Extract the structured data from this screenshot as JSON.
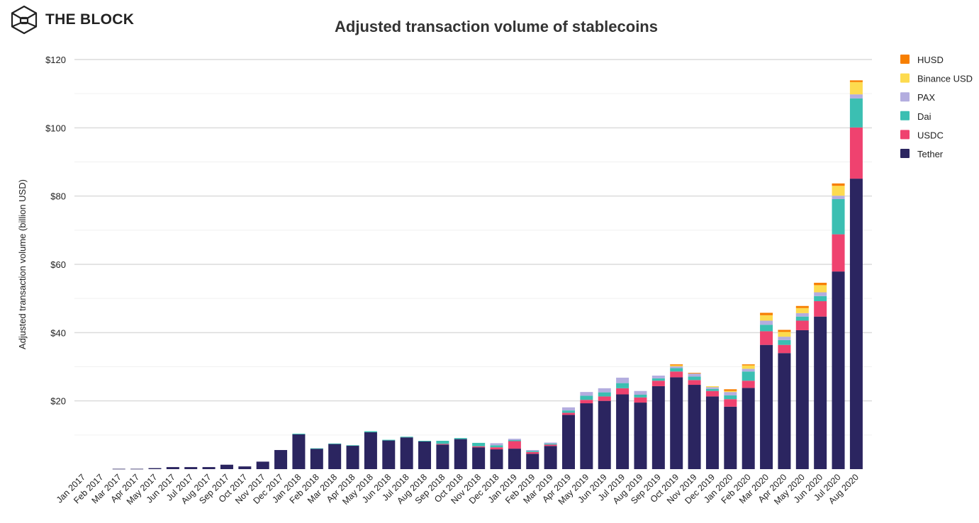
{
  "brand": {
    "name": "THE BLOCK",
    "icon": "cube-hexagon-icon"
  },
  "chart_data": {
    "type": "bar",
    "stacked": true,
    "title": "Adjusted transaction volume of stablecoins",
    "xlabel": "",
    "ylabel": "Adjusted transaction volume (billion USD)",
    "ylim": [
      0,
      120
    ],
    "yticks": [
      20,
      40,
      60,
      80,
      100,
      120
    ],
    "ytick_labels": [
      "$20",
      "$40",
      "$60",
      "$80",
      "$100",
      "$120"
    ],
    "grid": true,
    "legend_position": "top-right",
    "categories": [
      "Jan 2017",
      "Feb 2017",
      "Mar 2017",
      "Apr 2017",
      "May 2017",
      "Jun 2017",
      "Jul 2017",
      "Aug 2017",
      "Sep 2017",
      "Oct 2017",
      "Nov 2017",
      "Dec 2017",
      "Jan 2018",
      "Feb 2018",
      "Mar 2018",
      "Apr 2018",
      "May 2018",
      "Jun 2018",
      "Jul 2018",
      "Aug 2018",
      "Sep 2018",
      "Oct 2018",
      "Nov 2018",
      "Dec 2018",
      "Jan 2019",
      "Feb 2019",
      "Mar 2019",
      "Apr 2019",
      "May 2019",
      "Jun 2019",
      "Jul 2019",
      "Aug 2019",
      "Sep 2019",
      "Oct 2019",
      "Nov 2019",
      "Dec 2019",
      "Jan 2020",
      "Feb 2020",
      "Mar 2020",
      "Apr 2020",
      "May 2020",
      "Jun 2020",
      "Jul 2020",
      "Aug 2020"
    ],
    "series": [
      {
        "name": "Tether",
        "color": "#2b2560",
        "values": [
          0,
          0,
          0.1,
          0.1,
          0.3,
          0.6,
          0.6,
          0.6,
          1.3,
          0.8,
          2.2,
          5.6,
          10.2,
          6.0,
          7.4,
          6.9,
          10.8,
          8.4,
          9.3,
          8.1,
          7.2,
          8.8,
          6.4,
          5.8,
          6.0,
          4.5,
          6.8,
          15.9,
          19.3,
          20.0,
          21.9,
          19.5,
          24.3,
          26.9,
          24.7,
          21.3,
          18.3,
          23.8,
          36.4,
          34.0,
          40.7,
          44.7,
          57.9,
          85.1
        ]
      },
      {
        "name": "USDC",
        "color": "#ef426f",
        "values": [
          0,
          0,
          0,
          0,
          0,
          0,
          0,
          0,
          0,
          0,
          0,
          0,
          0,
          0,
          0,
          0,
          0,
          0,
          0,
          0,
          0.2,
          0,
          0.3,
          0.6,
          2.2,
          0.5,
          0.4,
          0.6,
          1.0,
          1.3,
          1.8,
          1.5,
          1.6,
          1.7,
          1.4,
          1.6,
          2.2,
          2.1,
          4.0,
          2.4,
          2.8,
          4.5,
          10.9,
          15.0
        ]
      },
      {
        "name": "Dai",
        "color": "#3bbfb2",
        "values": [
          0,
          0,
          0,
          0,
          0,
          0,
          0,
          0,
          0,
          0,
          0,
          0,
          0.2,
          0.1,
          0.1,
          0.1,
          0.3,
          0.2,
          0.2,
          0.2,
          0.9,
          0.3,
          1.0,
          0.6,
          0.3,
          0.3,
          0.3,
          0.7,
          1.2,
          1.2,
          1.5,
          0.8,
          0.7,
          1.0,
          1.0,
          0.6,
          1.1,
          2.7,
          1.9,
          1.4,
          1.2,
          1.5,
          10.3,
          8.5
        ]
      },
      {
        "name": "PAX",
        "color": "#b3addf",
        "values": [
          0,
          0,
          0,
          0,
          0,
          0,
          0,
          0,
          0,
          0,
          0,
          0,
          0,
          0,
          0,
          0,
          0,
          0,
          0,
          0,
          0,
          0,
          0,
          0.6,
          0.4,
          0.3,
          0.3,
          0.9,
          1.1,
          1.2,
          1.6,
          1.1,
          0.8,
          0.5,
          0.9,
          0.5,
          1.0,
          0.8,
          1.2,
          1.0,
          1.0,
          1.1,
          1.0,
          1.2
        ]
      },
      {
        "name": "Binance USD",
        "color": "#fddb4f",
        "values": [
          0,
          0,
          0,
          0,
          0,
          0,
          0,
          0,
          0,
          0,
          0,
          0,
          0,
          0,
          0,
          0,
          0,
          0,
          0,
          0,
          0,
          0,
          0,
          0,
          0,
          0,
          0,
          0,
          0,
          0,
          0,
          0,
          0,
          0.3,
          0,
          0.3,
          0.3,
          1.0,
          1.6,
          1.4,
          1.5,
          2.1,
          2.9,
          3.6
        ]
      },
      {
        "name": "HUSD",
        "color": "#f77f00",
        "values": [
          0,
          0,
          0,
          0,
          0,
          0,
          0,
          0,
          0,
          0,
          0,
          0,
          0,
          0,
          0,
          0,
          0,
          0,
          0,
          0,
          0,
          0,
          0,
          0,
          0,
          0,
          0,
          0,
          0,
          0,
          0,
          0,
          0,
          0.3,
          0.2,
          0,
          0.5,
          0.3,
          0.7,
          0.6,
          0.6,
          0.7,
          0.7,
          0.5
        ]
      }
    ]
  }
}
